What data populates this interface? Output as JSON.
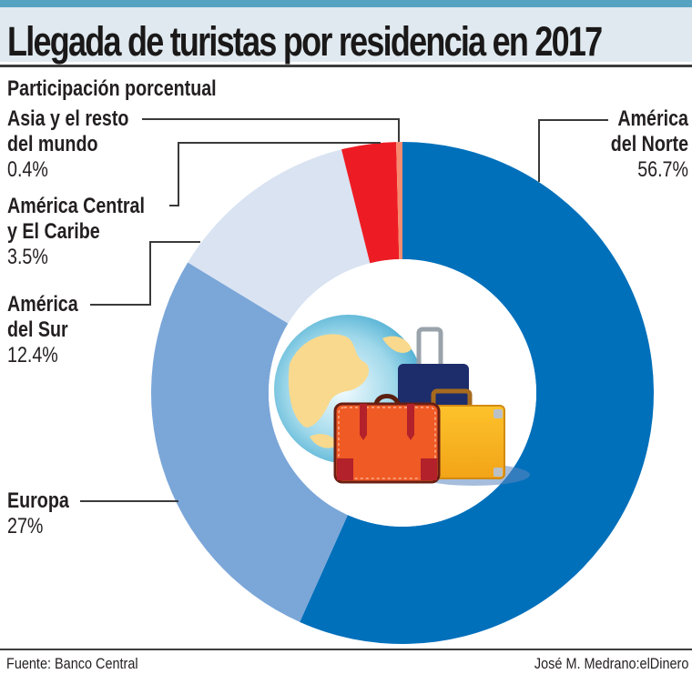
{
  "header": {
    "title": "Llegada de turistas por residencia en 2017",
    "subtitle": "Participación porcentual"
  },
  "footer": {
    "source": "Fuente: Banco Central",
    "credit": "José M. Medrano:elDinero"
  },
  "chart_data": {
    "type": "pie",
    "variant": "donut",
    "title": "Llegada de turistas por residencia en 2017",
    "subtitle": "Participación porcentual",
    "unit": "%",
    "start": "top",
    "direction": "clockwise",
    "slices": [
      {
        "name": "América del Norte",
        "name_lines": [
          "América",
          "del Norte"
        ],
        "value": 56.7,
        "label": "56.7%",
        "color": "#0070bb"
      },
      {
        "name": "Europa",
        "name_lines": [
          "Europa"
        ],
        "value": 27,
        "label": "27%",
        "color": "#7ba6d8"
      },
      {
        "name": "América del Sur",
        "name_lines": [
          "América",
          "del Sur"
        ],
        "value": 12.4,
        "label": "12.4%",
        "color": "#d9e3f2"
      },
      {
        "name": "América Central y El Caribe",
        "name_lines": [
          "América Central",
          "y El Caribe"
        ],
        "value": 3.5,
        "label": "3.5%",
        "color": "#ed1c24"
      },
      {
        "name": "Asia y el resto del mundo",
        "name_lines": [
          "Asia y el resto",
          "del mundo"
        ],
        "value": 0.4,
        "label": "0.4%",
        "color": "#f58b71"
      }
    ],
    "center_illustration": "globe-and-luggage"
  }
}
